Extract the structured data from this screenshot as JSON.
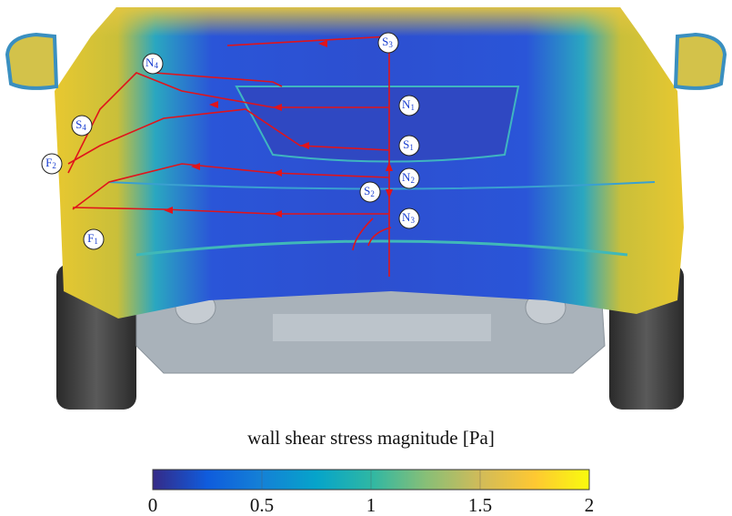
{
  "figure": {
    "nodes": [
      {
        "base": "S",
        "sub": "3"
      },
      {
        "base": "N",
        "sub": "4"
      },
      {
        "base": "N",
        "sub": "1"
      },
      {
        "base": "S",
        "sub": "4"
      },
      {
        "base": "S",
        "sub": "1"
      },
      {
        "base": "F",
        "sub": "2"
      },
      {
        "base": "N",
        "sub": "2"
      },
      {
        "base": "S",
        "sub": "2"
      },
      {
        "base": "N",
        "sub": "3"
      },
      {
        "base": "F",
        "sub": "1"
      }
    ],
    "colorbar": {
      "label": "wall shear stress magnitude [Pa]",
      "range": [
        0,
        2
      ],
      "ticks": [
        0,
        0.5,
        1,
        1.5,
        2
      ]
    }
  }
}
